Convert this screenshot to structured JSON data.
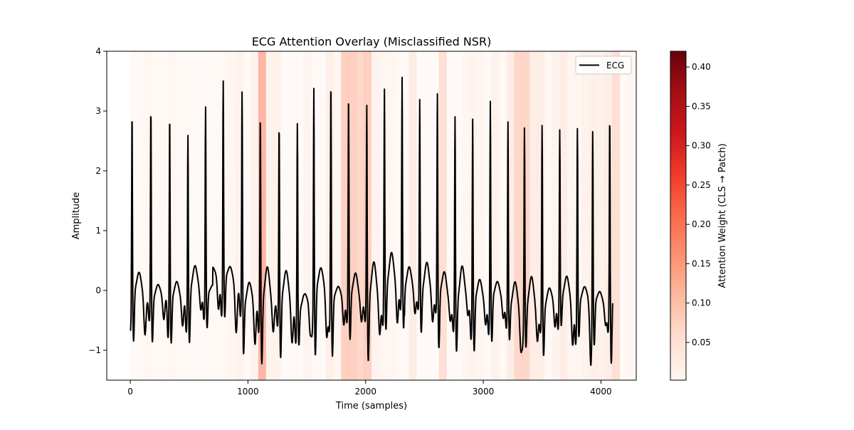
{
  "chart_data": {
    "type": "line",
    "title": "ECG Attention Overlay (Misclassified NSR)",
    "xlabel": "Time (samples)",
    "ylabel": "Amplitude",
    "xlim": [
      -200,
      4300
    ],
    "ylim": [
      -1.5,
      4.0
    ],
    "xticks": [
      0,
      1000,
      2000,
      3000,
      4000
    ],
    "xtick_labels": [
      "0",
      "1000",
      "2000",
      "3000",
      "4000"
    ],
    "yticks": [
      -1,
      0,
      1,
      2,
      3,
      4
    ],
    "ytick_labels": [
      "−1",
      "0",
      "1",
      "2",
      "3",
      "4"
    ],
    "legend": {
      "position": "top-right",
      "entries": [
        {
          "label": "ECG",
          "color": "#000000"
        }
      ]
    },
    "series": [
      {
        "name": "ECG",
        "color": "#000000"
      }
    ],
    "beats": [
      {
        "x": 15,
        "peak": 3.17
      },
      {
        "x": 175,
        "peak": 3.32
      },
      {
        "x": 335,
        "peak": 3.21
      },
      {
        "x": 490,
        "peak": 2.8
      },
      {
        "x": 640,
        "peak": 3.21
      },
      {
        "x": 790,
        "peak": 3.41
      },
      {
        "x": 950,
        "peak": 3.42
      },
      {
        "x": 1105,
        "peak": 3.28
      },
      {
        "x": 1265,
        "peak": 3.08
      },
      {
        "x": 1420,
        "peak": 3.23
      },
      {
        "x": 1560,
        "peak": 3.59
      },
      {
        "x": 1705,
        "peak": 3.76
      },
      {
        "x": 1855,
        "peak": 3.48
      },
      {
        "x": 2010,
        "peak": 3.4
      },
      {
        "x": 2160,
        "peak": 3.4
      },
      {
        "x": 2310,
        "peak": 3.5
      },
      {
        "x": 2460,
        "peak": 3.32
      },
      {
        "x": 2610,
        "peak": 3.44
      },
      {
        "x": 2760,
        "peak": 3.26
      },
      {
        "x": 2910,
        "peak": 3.17
      },
      {
        "x": 3060,
        "peak": 3.44
      },
      {
        "x": 3210,
        "peak": 3.17
      },
      {
        "x": 3350,
        "peak": 3.13
      },
      {
        "x": 3500,
        "peak": 3.2
      },
      {
        "x": 3650,
        "peak": 2.91
      },
      {
        "x": 3800,
        "peak": 3.05
      },
      {
        "x": 3930,
        "peak": 3.02
      },
      {
        "x": 4075,
        "peak": 3.23
      }
    ],
    "patch_size": 64,
    "attention": [
      0.004,
      0.012,
      0.02,
      0.012,
      0.008,
      0.02,
      0.01,
      0.008,
      0.004,
      0.004,
      0.005,
      0.005,
      0.01,
      0.02,
      0.04,
      0.004,
      0.04,
      0.21,
      0.04,
      0.04,
      0.004,
      0.004,
      0.004,
      0.03,
      0.004,
      0.004,
      0.05,
      0.02,
      0.14,
      0.14,
      0.12,
      0.14,
      0.03,
      0.02,
      0.02,
      0.01,
      0.004,
      0.06,
      0.004,
      0.004,
      0.004,
      0.1,
      0.004,
      0.004,
      0.02,
      0.03,
      0.02,
      0.004,
      0.04,
      0.01,
      0.06,
      0.12,
      0.12,
      0.06,
      0.06,
      0.01,
      0.03,
      0.06,
      0.02,
      0.02,
      0.04,
      0.05,
      0.04,
      0.06,
      0.1,
      0.004,
      0.02
    ],
    "colorbar": {
      "label": "Attention Weight (CLS → Patch)",
      "min": 0.002,
      "max": 0.42,
      "ticks": [
        0.05,
        0.1,
        0.15,
        0.2,
        0.25,
        0.3,
        0.35,
        0.4
      ],
      "tick_labels": [
        "0.05",
        "0.10",
        "0.15",
        "0.20",
        "0.25",
        "0.30",
        "0.35",
        "0.40"
      ]
    },
    "colormap": [
      "#fff5f0",
      "#fee0d2",
      "#fcbba1",
      "#fc9272",
      "#fb6a4a",
      "#ef3b2c",
      "#cb181d",
      "#a50f15",
      "#67000d"
    ]
  }
}
